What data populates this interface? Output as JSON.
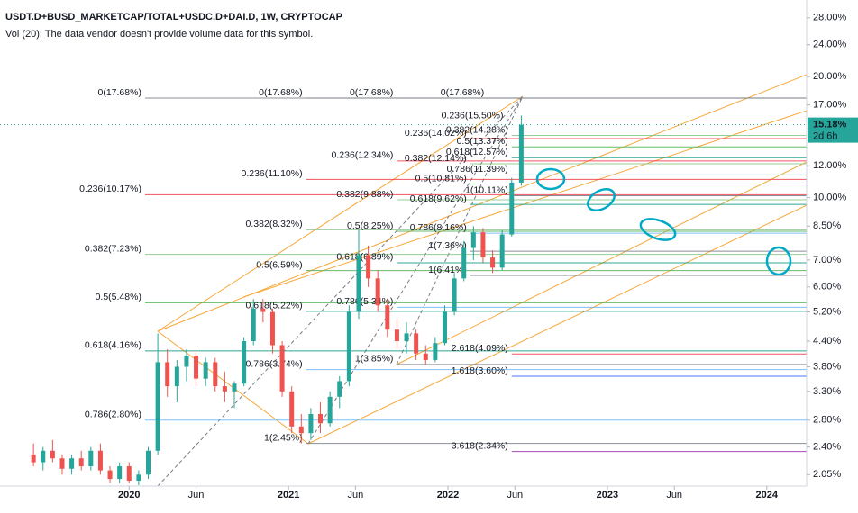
{
  "chart_data": {
    "type": "candlestick",
    "title": "USDT.D+BUSD_MARKETCAP/TOTAL+USDC.D+DAI.D, 1W, CRYPTOCAP",
    "subtitle": "Vol (20): The data vendor doesn't provide volume data for this symbol.",
    "log_scale": true,
    "up_color": "#26a69a",
    "down_color": "#ef5350",
    "xlim": [
      2019.19,
      2024.25
    ],
    "xticks": [
      {
        "value": 2020,
        "label": "2020"
      },
      {
        "value": 2020.42,
        "label": "Jun"
      },
      {
        "value": 2021,
        "label": "2021"
      },
      {
        "value": 2021.42,
        "label": "Jun"
      },
      {
        "value": 2022,
        "label": "2022"
      },
      {
        "value": 2022.42,
        "label": "Jun"
      },
      {
        "value": 2023,
        "label": "2023"
      },
      {
        "value": 2023.42,
        "label": "Jun"
      },
      {
        "value": 2024,
        "label": "2024"
      }
    ],
    "ylim": [
      1.92,
      31.0
    ],
    "yticks": [
      {
        "value": 2.05,
        "label": "2.05%"
      },
      {
        "value": 2.4,
        "label": "2.40%"
      },
      {
        "value": 2.8,
        "label": "2.80%"
      },
      {
        "value": 3.3,
        "label": "3.30%"
      },
      {
        "value": 3.8,
        "label": "3.80%"
      },
      {
        "value": 4.4,
        "label": "4.40%"
      },
      {
        "value": 5.2,
        "label": "5.20%"
      },
      {
        "value": 6,
        "label": "6.00%"
      },
      {
        "value": 7,
        "label": "7.00%"
      },
      {
        "value": 8.5,
        "label": "8.50%"
      },
      {
        "value": 10,
        "label": "10.00%"
      },
      {
        "value": 12,
        "label": "12.00%"
      },
      {
        "value": 17,
        "label": "17.00%"
      },
      {
        "value": 20,
        "label": "20.00%"
      },
      {
        "value": 24,
        "label": "24.00%"
      },
      {
        "value": 28,
        "label": "28.00%"
      }
    ],
    "last_price": {
      "value": 15.18,
      "label": "15.18%",
      "countdown": "2d 6h",
      "color": "#26a69a"
    },
    "x": [
      2019.4,
      2019.46,
      2019.52,
      2019.58,
      2019.64,
      2019.7,
      2019.76,
      2019.82,
      2019.88,
      2019.94,
      2020.0,
      2020.06,
      2020.12,
      2020.18,
      2020.24,
      2020.3,
      2020.36,
      2020.42,
      2020.48,
      2020.54,
      2020.6,
      2020.66,
      2020.72,
      2020.78,
      2020.84,
      2020.9,
      2020.96,
      2021.02,
      2021.08,
      2021.14,
      2021.2,
      2021.26,
      2021.32,
      2021.38,
      2021.44,
      2021.5,
      2021.56,
      2021.62,
      2021.68,
      2021.74,
      2021.8,
      2021.86,
      2021.92,
      2021.98,
      2022.04,
      2022.1,
      2022.16,
      2022.22,
      2022.28,
      2022.34,
      2022.4,
      2022.46
    ],
    "open": [
      2.3,
      2.2,
      2.35,
      2.25,
      2.12,
      2.25,
      2.15,
      2.35,
      2.1,
      2.0,
      2.15,
      1.98,
      2.05,
      2.35,
      3.9,
      3.4,
      3.8,
      4.05,
      3.55,
      3.9,
      3.4,
      3.3,
      3.45,
      4.4,
      5.3,
      5.2,
      4.3,
      3.3,
      2.7,
      2.6,
      2.9,
      2.75,
      3.2,
      3.5,
      5.2,
      7.2,
      6.3,
      5.4,
      4.7,
      4.4,
      4.6,
      4.1,
      3.95,
      4.35,
      5.2,
      6.3,
      7.5,
      8.2,
      7.1,
      6.7,
      8.1,
      10.9
    ],
    "high": [
      2.45,
      2.4,
      2.5,
      2.3,
      2.3,
      2.35,
      2.4,
      2.45,
      2.15,
      2.2,
      2.2,
      2.1,
      2.4,
      4.6,
      4.2,
      3.95,
      4.2,
      4.15,
      4.0,
      4.0,
      3.7,
      3.5,
      4.5,
      5.6,
      5.6,
      5.3,
      4.4,
      3.4,
      2.9,
      3.0,
      3.1,
      3.3,
      3.6,
      5.4,
      8.3,
      7.6,
      6.6,
      5.6,
      5.0,
      4.9,
      4.7,
      4.3,
      4.5,
      5.4,
      6.5,
      7.8,
      8.5,
      8.4,
      7.4,
      8.3,
      11.2,
      16.0
    ],
    "low": [
      2.15,
      2.1,
      2.2,
      2.05,
      2.05,
      2.1,
      2.1,
      2.05,
      1.95,
      1.95,
      1.95,
      1.93,
      2.0,
      2.3,
      3.2,
      3.1,
      3.5,
      3.4,
      3.4,
      3.3,
      3.1,
      3.0,
      3.4,
      4.3,
      4.9,
      4.1,
      3.2,
      2.6,
      2.45,
      2.5,
      2.6,
      2.7,
      3.0,
      3.4,
      5.0,
      6.0,
      5.2,
      4.5,
      4.2,
      4.1,
      3.95,
      3.85,
      3.9,
      4.3,
      5.1,
      6.2,
      7.0,
      6.9,
      6.5,
      6.6,
      8.0,
      10.7
    ],
    "close": [
      2.2,
      2.35,
      2.25,
      2.12,
      2.25,
      2.15,
      2.35,
      2.1,
      2.0,
      2.15,
      1.98,
      2.05,
      2.35,
      3.9,
      3.4,
      3.8,
      4.05,
      3.55,
      3.9,
      3.4,
      3.3,
      3.45,
      4.4,
      5.3,
      5.2,
      4.3,
      3.3,
      2.7,
      2.6,
      2.9,
      2.75,
      3.2,
      3.5,
      5.2,
      7.2,
      6.3,
      5.4,
      4.7,
      4.4,
      4.6,
      4.1,
      3.95,
      4.35,
      5.2,
      6.3,
      7.5,
      8.2,
      7.1,
      6.7,
      8.1,
      10.9,
      15.18
    ],
    "fib_levels": [
      {
        "label": "0(17.68%)",
        "value": 17.68,
        "color": "#787b86",
        "start": 2020.1
      },
      {
        "label": "0(17.68%)",
        "value": 17.68,
        "color": "#787b86",
        "start": 2021.11
      },
      {
        "label": "0(17.68%)",
        "value": 17.68,
        "color": "#787b86",
        "start": 2021.68
      },
      {
        "label": "0(17.68%)",
        "value": 17.68,
        "color": "#787b86",
        "start": 2022.25
      },
      {
        "label": "0.236(15.50%)",
        "value": 15.5,
        "color": "#f23645",
        "start": 2022.37
      },
      {
        "label": "0.382(14.28%)",
        "value": 14.28,
        "color": "#81c784",
        "start": 2022.4
      },
      {
        "label": "0.236(14.02%)",
        "value": 14.02,
        "color": "#f23645",
        "start": 2022.14
      },
      {
        "label": "0.5(13.37%)",
        "value": 13.37,
        "color": "#4caf50",
        "start": 2022.4
      },
      {
        "label": "0.618(12.57%)",
        "value": 12.57,
        "color": "#089981",
        "start": 2022.4
      },
      {
        "label": "0.236(12.34%)",
        "value": 12.34,
        "color": "#f23645",
        "start": 2021.68
      },
      {
        "label": "0.382(12.14%)",
        "value": 12.14,
        "color": "#81c784",
        "start": 2022.14
      },
      {
        "label": "0.786(11.39%)",
        "value": 11.39,
        "color": "#64b5f6",
        "start": 2022.4
      },
      {
        "label": "0.236(11.10%)",
        "value": 11.1,
        "color": "#f23645",
        "start": 2021.11
      },
      {
        "label": "0.5(10.81%)",
        "value": 10.81,
        "color": "#4caf50",
        "start": 2022.14
      },
      {
        "label": "0.236(10.17%)",
        "value": 10.17,
        "color": "#f23645",
        "start": 2020.1
      },
      {
        "label": "1(10.11%)",
        "value": 10.11,
        "color": "#787b86",
        "start": 2022.4
      },
      {
        "label": "0.382(9.88%)",
        "value": 9.88,
        "color": "#81c784",
        "start": 2021.68
      },
      {
        "label": "0.618(9.62%)",
        "value": 9.62,
        "color": "#089981",
        "start": 2022.14
      },
      {
        "label": "0.382(8.32%)",
        "value": 8.32,
        "color": "#81c784",
        "start": 2021.11
      },
      {
        "label": "0.5(8.25%)",
        "value": 8.25,
        "color": "#4caf50",
        "start": 2021.68
      },
      {
        "label": "0.786(8.16%)",
        "value": 8.16,
        "color": "#64b5f6",
        "start": 2022.14
      },
      {
        "label": "1(7.36%)",
        "value": 7.36,
        "color": "#787b86",
        "start": 2022.14
      },
      {
        "label": "0.382(7.23%)",
        "value": 7.23,
        "color": "#81c784",
        "start": 2020.1
      },
      {
        "label": "0.618(6.89%)",
        "value": 6.89,
        "color": "#089981",
        "start": 2021.68
      },
      {
        "label": "0.5(6.59%)",
        "value": 6.59,
        "color": "#4caf50",
        "start": 2021.11
      },
      {
        "label": "1(6.41%)",
        "value": 6.41,
        "color": "#787b86",
        "start": 2022.14
      },
      {
        "label": "0.5(5.48%)",
        "value": 5.48,
        "color": "#4caf50",
        "start": 2020.1
      },
      {
        "label": "0.786(5.34%)",
        "value": 5.34,
        "color": "#64b5f6",
        "start": 2021.68
      },
      {
        "label": "0.618(5.22%)",
        "value": 5.22,
        "color": "#089981",
        "start": 2021.11
      },
      {
        "label": "0.618(4.16%)",
        "value": 4.16,
        "color": "#089981",
        "start": 2020.1
      },
      {
        "label": "2.618(4.09%)",
        "value": 4.09,
        "color": "#f23645",
        "start": 2022.4
      },
      {
        "label": "1(3.85%)",
        "value": 3.85,
        "color": "#787b86",
        "start": 2021.68
      },
      {
        "label": "0.786(3.74%)",
        "value": 3.74,
        "color": "#64b5f6",
        "start": 2021.11
      },
      {
        "label": "1.618(3.60%)",
        "value": 3.6,
        "color": "#2962ff",
        "start": 2022.4
      },
      {
        "label": "0.786(2.80%)",
        "value": 2.8,
        "color": "#64b5f6",
        "start": 2020.1
      },
      {
        "label": "1(2.45%)",
        "value": 2.45,
        "color": "#787b86",
        "start": 2021.11
      },
      {
        "label": "3.618(2.34%)",
        "value": 2.34,
        "color": "#9c27b0",
        "start": 2022.4
      }
    ]
  }
}
